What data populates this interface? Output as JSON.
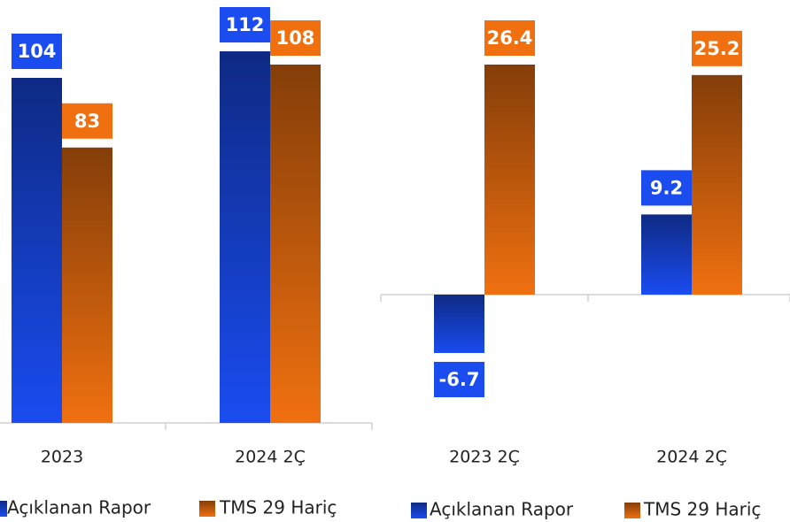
{
  "chart_data": [
    {
      "type": "bar",
      "categories": [
        "2023",
        "2024 2Ç"
      ],
      "series": [
        {
          "name": "Açıklanan Rapor",
          "color": "#1a4cf0",
          "values": [
            104,
            112
          ]
        },
        {
          "name": "TMS 29 Hariç",
          "color": "#f07010",
          "values": [
            83,
            108
          ]
        }
      ]
    },
    {
      "type": "bar",
      "categories": [
        "2023 2Ç",
        "2024 2Ç"
      ],
      "series": [
        {
          "name": "Açıklanan Rapor",
          "color": "#1a4cf0",
          "values": [
            -6.7,
            9.2
          ]
        },
        {
          "name": "TMS 29 Hariç",
          "color": "#f07010",
          "values": [
            26.4,
            25.2
          ]
        }
      ]
    }
  ]
}
